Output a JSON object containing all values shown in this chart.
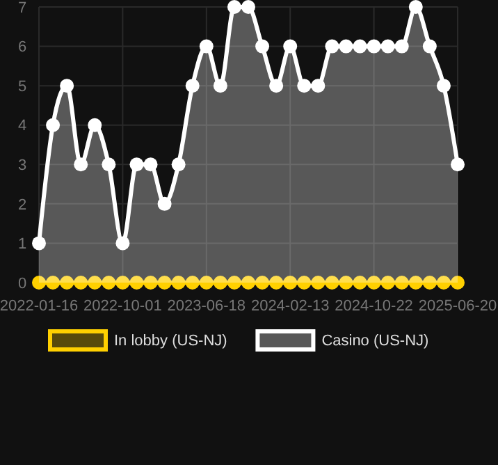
{
  "chart_data": {
    "type": "area",
    "categories": [
      "2022-01-16",
      null,
      null,
      null,
      null,
      null,
      "2022-10-01",
      null,
      null,
      null,
      null,
      null,
      "2023-06-18",
      null,
      null,
      null,
      null,
      null,
      "2024-02-13",
      null,
      null,
      null,
      null,
      null,
      "2024-10-22",
      null,
      null,
      null,
      null,
      null,
      "2025-06-20"
    ],
    "series": [
      {
        "name": "In lobby (US-NJ)",
        "type": "line",
        "color": "#ffd000",
        "values": [
          0,
          0,
          0,
          0,
          0,
          0,
          0,
          0,
          0,
          0,
          0,
          0,
          0,
          0,
          0,
          0,
          0,
          0,
          0,
          0,
          0,
          0,
          0,
          0,
          0,
          0,
          0,
          0,
          0,
          0,
          0
        ]
      },
      {
        "name": "Casino (US-NJ)",
        "color": "#ffffff",
        "values": [
          1,
          4,
          5,
          3,
          4,
          3,
          1,
          3,
          3,
          2,
          3,
          5,
          6,
          5,
          7,
          7,
          6,
          5,
          6,
          5,
          5,
          6,
          6,
          6,
          6,
          6,
          6,
          7,
          6,
          5,
          3
        ]
      }
    ],
    "ylim": [
      0,
      7
    ],
    "yticks": [
      0,
      1,
      2,
      3,
      4,
      5,
      6,
      7
    ],
    "grid": true,
    "legend": "bottom",
    "marker": "circle"
  }
}
